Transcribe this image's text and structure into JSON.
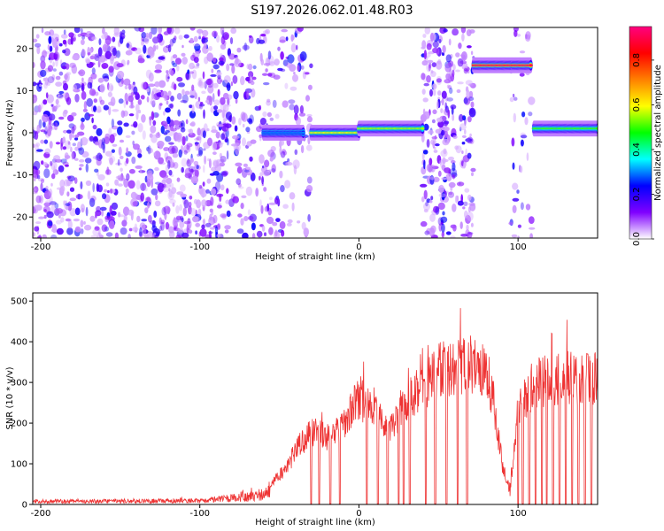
{
  "title": "S197.2026.062.01.48.R03",
  "chart_data": [
    {
      "type": "heatmap",
      "title": "S197.2026.062.01.48.R03",
      "xlabel": "Height of straight line (km)",
      "ylabel": "Frequency (Hz)",
      "xlim": [
        -205,
        150
      ],
      "ylim": [
        -25,
        25
      ],
      "xticks": [
        -200,
        -100,
        0,
        100
      ],
      "xtick_labels": [
        "-200",
        "-100",
        "0",
        "100"
      ],
      "yticks": [
        -20,
        -10,
        0,
        10,
        20
      ],
      "ytick_labels": [
        "-20",
        "-10",
        "0",
        "10",
        "20"
      ],
      "colorbar": {
        "label": "Normalized spectral amplitude",
        "range": [
          0,
          0.95
        ],
        "ticks": [
          0,
          0.2,
          0.4,
          0.6,
          0.8
        ],
        "tick_labels": [
          "0.0",
          "0.2",
          "0.4",
          "0.6",
          "0.8"
        ],
        "colormap": [
          "#ffffff",
          "#8000ff",
          "#0000ff",
          "#00ffff",
          "#00ff00",
          "#ffff00",
          "#ff8000",
          "#ff0000",
          "#ff0080"
        ]
      },
      "noise_regions": [
        {
          "x_range": [
            -205,
            -80
          ],
          "density": "high"
        },
        {
          "x_range": [
            -80,
            -30
          ],
          "density": "medium"
        },
        {
          "x_range": [
            40,
            72
          ],
          "density": "high"
        },
        {
          "x_range": [
            95,
            110
          ],
          "density": "low"
        }
      ],
      "signal_track": [
        {
          "x": [
            -60,
            -35
          ],
          "freq": 0,
          "amplitude": 0.3
        },
        {
          "x": [
            -30,
            0
          ],
          "freq": 0,
          "amplitude": 0.6
        },
        {
          "x": [
            0,
            40
          ],
          "freq": 1,
          "amplitude": 0.55
        },
        {
          "x": [
            72,
            108
          ],
          "freq": 16,
          "amplitude": 0.9
        },
        {
          "x": [
            110,
            150
          ],
          "freq": 1,
          "amplitude": 0.5
        }
      ]
    },
    {
      "type": "line",
      "xlabel": "Height of straight line (km)",
      "ylabel": "SNR (10 * v/v)",
      "xlim": [
        -205,
        150
      ],
      "ylim": [
        0,
        520
      ],
      "xticks": [
        -200,
        -100,
        0,
        100
      ],
      "xtick_labels": [
        "-200",
        "-100",
        "0",
        "100"
      ],
      "yticks": [
        0,
        100,
        200,
        300,
        400,
        500
      ],
      "ytick_labels": [
        "0",
        "100",
        "200",
        "300",
        "400",
        "500"
      ],
      "color": "#ee3333",
      "envelope": {
        "x": [
          -205,
          -100,
          -80,
          -60,
          -45,
          -40,
          -30,
          -20,
          -10,
          0,
          10,
          20,
          30,
          40,
          50,
          60,
          70,
          80,
          85,
          90,
          95,
          100,
          110,
          120,
          130,
          140,
          150
        ],
        "y": [
          12,
          15,
          25,
          40,
          110,
          160,
          220,
          200,
          240,
          320,
          280,
          230,
          300,
          350,
          400,
          410,
          420,
          400,
          300,
          120,
          40,
          280,
          360,
          370,
          380,
          370,
          380
        ]
      },
      "dropout_x": [
        -30,
        -25,
        -18,
        -12,
        5,
        12,
        18,
        25,
        28,
        32,
        42,
        48,
        55,
        62,
        68,
        100,
        103,
        107,
        111,
        115,
        118,
        122,
        126,
        130,
        134,
        138,
        142,
        146
      ]
    }
  ]
}
